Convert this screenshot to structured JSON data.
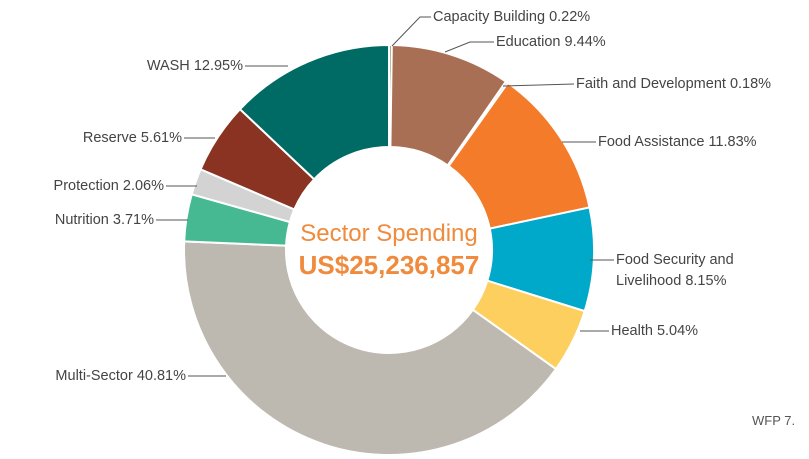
{
  "chart_data": {
    "type": "donut",
    "categories": [
      "Capacity Building",
      "Education",
      "Faith and Development",
      "Food Assistance",
      "Food Security and Livelihood",
      "Health",
      "Multi-Sector",
      "Nutrition",
      "Protection",
      "Reserve",
      "WASH"
    ],
    "values": [
      0.22,
      9.44,
      0.18,
      11.83,
      8.15,
      5.04,
      40.81,
      3.71,
      2.06,
      5.61,
      12.95
    ],
    "value_labels": [
      "0.22%",
      "9.44%",
      "0.18%",
      "11.83%",
      "8.15%",
      "5.04%",
      "40.81%",
      "3.71%",
      "2.06%",
      "5.61%",
      "12.95%"
    ],
    "colors": [
      "#6f8a4a",
      "#a86f55",
      "#8fb3d0",
      "#f47b2a",
      "#00a9c9",
      "#fccf5f",
      "#bdb9b0",
      "#46b993",
      "#d3d3d3",
      "#8a3322",
      "#006b64"
    ],
    "center_label": "Sector Spending",
    "total": "US$25,236,857",
    "note": "WFP 7."
  }
}
